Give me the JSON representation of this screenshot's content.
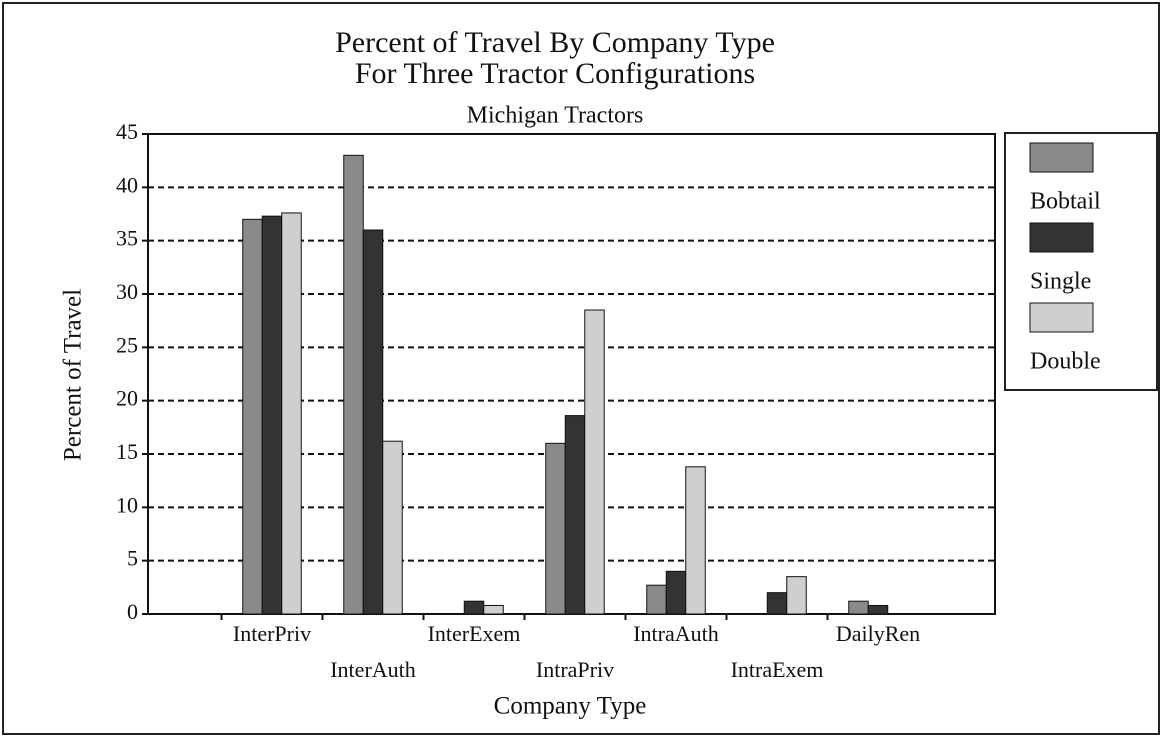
{
  "chart_data": {
    "type": "bar",
    "title": "Percent of Travel By Company Type",
    "title_line2": "For Three Tractor Configurations",
    "subtitle": "Michigan Tractors",
    "x_label": "Company Type",
    "y_label": "Percent of Travel",
    "categories": [
      "InterPriv",
      "InterAuth",
      "InterExem",
      "IntraPriv",
      "IntraAuth",
      "IntraExem",
      "DailyRen"
    ],
    "series": [
      {
        "name": "Bobtail",
        "color": "#8a8a8a",
        "values": [
          37,
          43,
          0,
          16,
          2.7,
          0,
          1.2
        ]
      },
      {
        "name": "Single",
        "color": "#333333",
        "values": [
          37.3,
          36,
          1.2,
          18.6,
          4,
          2,
          0.8
        ]
      },
      {
        "name": "Double",
        "color": "#cfcfcf",
        "values": [
          37.6,
          16.2,
          0.8,
          28.5,
          13.8,
          3.5,
          0
        ]
      }
    ],
    "ylim": [
      0,
      45
    ],
    "yticks": [
      0,
      5,
      10,
      15,
      20,
      25,
      30,
      35,
      40,
      45
    ],
    "grid": true,
    "legend": "right"
  }
}
